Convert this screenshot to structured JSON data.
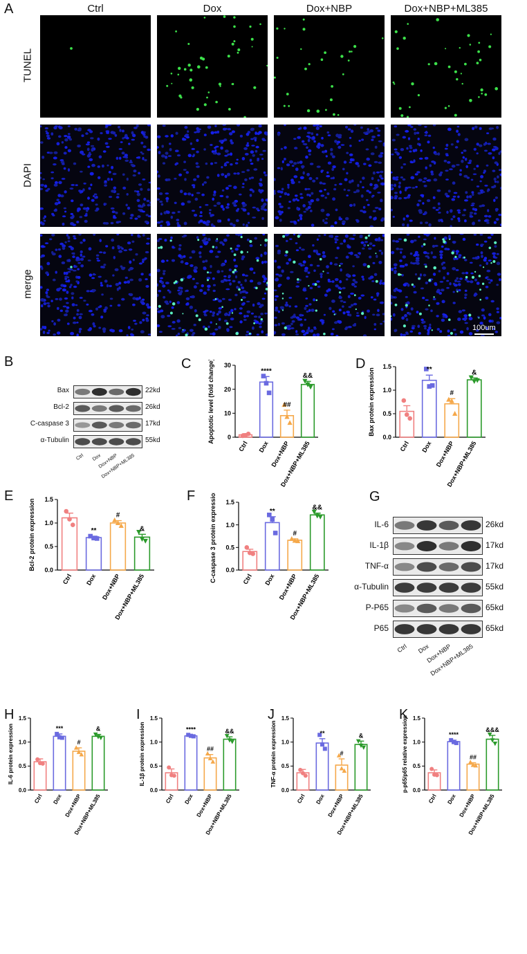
{
  "panels": {
    "A": "A",
    "B": "B",
    "C": "C",
    "D": "D",
    "E": "E",
    "F": "F",
    "G": "G",
    "H": "H",
    "I": "I",
    "J": "J",
    "K": "K"
  },
  "panelA": {
    "columns": [
      "Ctrl",
      "Dox",
      "Dox+NBP",
      "Dox+NBP+ML385"
    ],
    "rows": [
      "TUNEL",
      "DAPI",
      "merge"
    ],
    "scale_bar": "100um"
  },
  "blotB": {
    "bands": [
      "Bax",
      "Bcl-2",
      "C-caspase 3",
      "α-Tubulin"
    ],
    "kd": [
      "22kd",
      "26kd",
      "17kd",
      "55kd"
    ],
    "lanes": [
      "Ctrl",
      "Dox",
      "Dox+NBP",
      "Dox+NBP+ML385"
    ]
  },
  "blotG": {
    "bands": [
      "IL-6",
      "IL-1β",
      "TNF-α",
      "α-Tubulin",
      "P-P65",
      "P65"
    ],
    "kd": [
      "26kd",
      "17kd",
      "17kd",
      "55kd",
      "65kd",
      "65kd"
    ],
    "lanes": [
      "Ctrl",
      "Dox",
      "Dox+NBP",
      "Dox+NBP+ML385"
    ]
  },
  "colors": {
    "Ctrl": "#f08080",
    "Dox": "#6a6ae0",
    "Dox+NBP": "#f5a84a",
    "Dox+NBP+ML385": "#2a9a2a"
  },
  "chart_data": [
    {
      "id": "C",
      "type": "bar",
      "categories": [
        "Ctrl",
        "Dox",
        "Dox+NBP",
        "Dox+NBP+ML385"
      ],
      "values": [
        1,
        23,
        9,
        22
      ],
      "errors": [
        0.5,
        2.3,
        2.3,
        1.3
      ],
      "points": [
        [
          0.6,
          0.8,
          1.4
        ],
        [
          25.5,
          22.5,
          18.5
        ],
        [
          13.5,
          8.5,
          6.0
        ],
        [
          23.5,
          22.0,
          21.0
        ]
      ],
      "ylabel": "Apoptotic level (fold change)",
      "ylim": [
        0,
        30
      ],
      "yticks": [
        0,
        10,
        20,
        30
      ],
      "sig": [
        "",
        "****",
        "##",
        "&&"
      ]
    },
    {
      "id": "D",
      "type": "bar",
      "categories": [
        "Ctrl",
        "Dox",
        "Dox+NBP",
        "Dox+NBP+ML385"
      ],
      "values": [
        0.55,
        1.21,
        0.71,
        1.22
      ],
      "errors": [
        0.12,
        0.11,
        0.11,
        0.04
      ],
      "points": [
        [
          0.78,
          0.48,
          0.4
        ],
        [
          1.45,
          1.08,
          1.1
        ],
        [
          0.8,
          0.77,
          0.5
        ],
        [
          1.27,
          1.19,
          1.21
        ]
      ],
      "ylabel": "Bax protein expression",
      "ylim": [
        0,
        1.5
      ],
      "yticks": [
        0.0,
        0.5,
        1.0,
        1.5
      ],
      "sig": [
        "",
        "**",
        "#",
        "&"
      ]
    },
    {
      "id": "E",
      "type": "bar",
      "categories": [
        "Ctrl",
        "Dox",
        "Dox+NBP",
        "Dox+NBP+ML385"
      ],
      "values": [
        1.11,
        0.69,
        1.0,
        0.7
      ],
      "errors": [
        0.1,
        0.03,
        0.05,
        0.06
      ],
      "points": [
        [
          1.25,
          1.08,
          0.96
        ],
        [
          0.72,
          0.68,
          0.67
        ],
        [
          1.06,
          1.0,
          0.94
        ],
        [
          0.81,
          0.66,
          0.62
        ]
      ],
      "ylabel": "Bcl-2 protein expression",
      "ylim": [
        0,
        1.5
      ],
      "yticks": [
        0.0,
        0.5,
        1.0,
        1.5
      ],
      "sig": [
        "",
        "**",
        "#",
        "&"
      ]
    },
    {
      "id": "F",
      "type": "bar",
      "categories": [
        "Ctrl",
        "Dox",
        "Dox+NBP",
        "Dox+NBP+ML385"
      ],
      "values": [
        0.41,
        1.05,
        0.66,
        1.22
      ],
      "errors": [
        0.05,
        0.13,
        0.03,
        0.04
      ],
      "points": [
        [
          0.5,
          0.38,
          0.36
        ],
        [
          1.22,
          1.12,
          0.82
        ],
        [
          0.69,
          0.65,
          0.64
        ],
        [
          1.29,
          1.2,
          1.18
        ]
      ],
      "ylabel": "C-caspase 3 protein expression",
      "ylim": [
        0,
        1.5
      ],
      "yticks": [
        0.0,
        0.5,
        1.0,
        1.5
      ],
      "sig": [
        "",
        "**",
        "#",
        "&&"
      ]
    },
    {
      "id": "H",
      "type": "bar",
      "categories": [
        "Ctrl",
        "Dox",
        "Dox+NBP",
        "Dox+NBP+ML385"
      ],
      "values": [
        0.59,
        1.12,
        0.81,
        1.12
      ],
      "errors": [
        0.06,
        0.05,
        0.07,
        0.04
      ],
      "points": [
        [
          0.64,
          0.56,
          0.55
        ],
        [
          1.17,
          1.1,
          1.09
        ],
        [
          0.88,
          0.79,
          0.74
        ],
        [
          1.16,
          1.11,
          1.09
        ]
      ],
      "ylabel": "IL-6 protein expression",
      "ylim": [
        0,
        1.5
      ],
      "yticks": [
        0.0,
        0.5,
        1.0,
        1.5
      ],
      "sig": [
        "",
        "***",
        "#",
        "&"
      ]
    },
    {
      "id": "I",
      "type": "bar",
      "categories": [
        "Ctrl",
        "Dox",
        "Dox+NBP",
        "Dox+NBP+ML385"
      ],
      "values": [
        0.36,
        1.13,
        0.67,
        1.06
      ],
      "errors": [
        0.08,
        0.02,
        0.07,
        0.05
      ],
      "points": [
        [
          0.47,
          0.31,
          0.3
        ],
        [
          1.15,
          1.13,
          1.12
        ],
        [
          0.76,
          0.66,
          0.59
        ],
        [
          1.13,
          1.04,
          1.01
        ]
      ],
      "ylabel": "IL-1β protein expression",
      "ylim": [
        0,
        1.5
      ],
      "yticks": [
        0.0,
        0.5,
        1.0,
        1.5
      ],
      "sig": [
        "",
        "****",
        "##",
        "&&"
      ]
    },
    {
      "id": "J",
      "type": "bar",
      "categories": [
        "Ctrl",
        "Dox",
        "Dox+NBP",
        "Dox+NBP+ML385"
      ],
      "values": [
        0.36,
        0.98,
        0.52,
        0.95
      ],
      "errors": [
        0.07,
        0.09,
        0.13,
        0.07
      ],
      "points": [
        [
          0.42,
          0.35,
          0.3
        ],
        [
          1.15,
          0.95,
          0.86
        ],
        [
          0.72,
          0.45,
          0.4
        ],
        [
          1.02,
          0.93,
          0.89
        ]
      ],
      "ylabel": "TNF-α protein expression",
      "ylim": [
        0,
        1.5
      ],
      "yticks": [
        0.0,
        0.5,
        1.0,
        1.5
      ],
      "sig": [
        "",
        "**",
        "#",
        "&"
      ]
    },
    {
      "id": "K",
      "type": "bar",
      "categories": [
        "Ctrl",
        "Dox",
        "Dox+NBP",
        "Dox+NBP+ML385"
      ],
      "values": [
        0.36,
        1.01,
        0.54,
        1.06
      ],
      "errors": [
        0.06,
        0.03,
        0.03,
        0.08
      ],
      "points": [
        [
          0.44,
          0.32,
          0.31
        ],
        [
          1.04,
          1.0,
          0.98
        ],
        [
          0.58,
          0.52,
          0.51
        ],
        [
          1.16,
          1.04,
          0.97
        ]
      ],
      "ylabel": "p-p65/p65 relative expression",
      "ylim": [
        0,
        1.5
      ],
      "yticks": [
        0.0,
        0.5,
        1.0,
        1.5
      ],
      "sig": [
        "",
        "****",
        "##",
        "&&&"
      ]
    }
  ]
}
